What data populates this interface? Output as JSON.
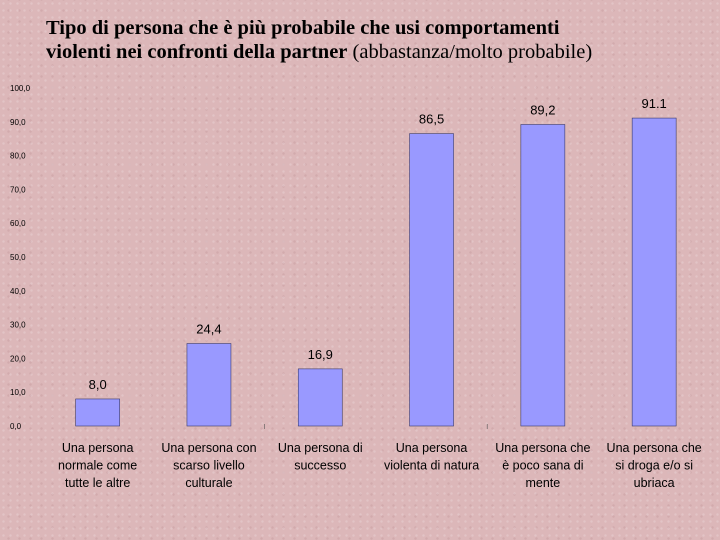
{
  "title": {
    "line1": "Tipo di persona che è più probabile che usi comportamenti",
    "line2_bold": "violenti nei confronti della partner",
    "line2_normal": " (abbastanza/molto probabile)"
  },
  "chart_data": {
    "type": "bar",
    "categories": [
      [
        "Una persona",
        "normale come",
        "tutte le altre"
      ],
      [
        "Una persona con",
        "scarso livello",
        "culturale"
      ],
      [
        "Una persona di",
        "successo"
      ],
      [
        "Una persona",
        "violenta di natura"
      ],
      [
        "Una persona che",
        "è poco sana di",
        "mente"
      ],
      [
        "Una persona che",
        "si droga e/o si",
        "ubriaca"
      ]
    ],
    "values": [
      8.0,
      24.4,
      16.9,
      86.5,
      89.2,
      91.1
    ],
    "value_labels": [
      "8,0",
      "24,4",
      "16,9",
      "86,5",
      "89,2",
      "91.1"
    ],
    "ylim": [
      0,
      100
    ],
    "y_ticks": [
      "0,0",
      "10,0",
      "20,0",
      "30,0",
      "40,0",
      "50,0",
      "60,0",
      "70,0",
      "80,0",
      "90,0",
      "100,0"
    ],
    "grid": false,
    "legend": "none",
    "bar_color": "#9999ff",
    "bar_edge_color": "#3a3a6a"
  }
}
